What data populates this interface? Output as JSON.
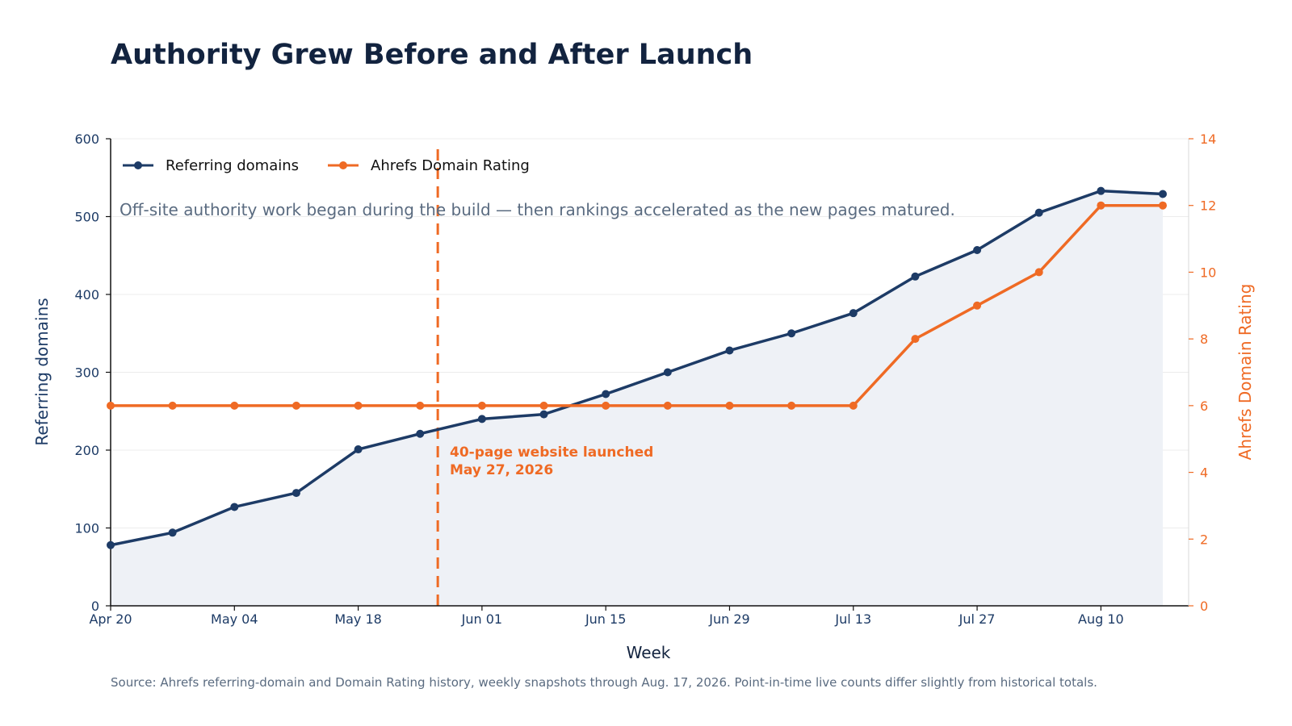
{
  "chart_data": {
    "type": "line",
    "title": "Authority Grew Before and After Launch",
    "subtitle": "Off-site authority work began during the build — then rankings accelerated as the new pages matured.",
    "xlabel": "Week",
    "ylabel_left": "Referring domains",
    "ylabel_right": "Ahrefs Domain Rating",
    "x_start": "2026-04-20",
    "x_step_days": 7,
    "x_tick_labels": [
      "Apr 20",
      "May 04",
      "May 18",
      "Jun 01",
      "Jun 15",
      "Jun 29",
      "Jul 13",
      "Jul 27",
      "Aug 10"
    ],
    "y_left_range": [
      0,
      600
    ],
    "y_left_ticks": [
      "0",
      "100",
      "200",
      "300",
      "400",
      "500",
      "600"
    ],
    "y_right_range": [
      0,
      14
    ],
    "y_right_ticks": [
      "0",
      "2",
      "4",
      "6",
      "8",
      "10",
      "12",
      "14"
    ],
    "grid": true,
    "legend_position": "top-left",
    "series": [
      {
        "name": "Referring domains",
        "axis": "left",
        "color": "#1d3b66",
        "fill": "#eef1f6",
        "values": [
          78,
          94,
          127,
          145,
          201,
          221,
          240,
          246,
          272,
          300,
          328,
          350,
          376,
          423,
          457,
          505,
          533,
          529
        ]
      },
      {
        "name": "Ahrefs Domain Rating",
        "axis": "right",
        "color": "#ef6a24",
        "values": [
          6,
          6,
          6,
          6,
          6,
          6,
          6,
          6,
          6,
          6,
          6,
          6,
          6,
          8,
          9,
          10,
          12,
          12
        ]
      }
    ],
    "annotation": {
      "date": "2026-05-27",
      "line1": "40-page website launched",
      "line2": "May 27, 2026",
      "color": "#ef6a24"
    },
    "source": "Source: Ahrefs referring-domain and Domain Rating history, weekly snapshots through Aug. 17, 2026. Point-in-time live counts differ slightly from historical totals."
  }
}
